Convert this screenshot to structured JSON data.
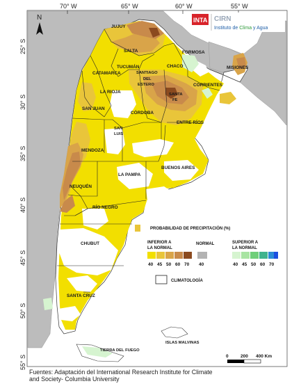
{
  "map": {
    "longitude_labels": [
      "70° W",
      "65° W",
      "60° W",
      "55° W"
    ],
    "latitude_labels": [
      "25° S",
      "30° S",
      "35° S",
      "40° S",
      "45° S",
      "50° S",
      "55° S"
    ],
    "north_label": "N",
    "provinces": {
      "jujuy": "JUJUY",
      "salta": "SALTA",
      "formosa": "FORMOSA",
      "chaco": "CHACO",
      "misiones": "MISIONES",
      "tucuman": "TUCUMÁN",
      "catamarca": "CATAMARCA",
      "santiago": [
        "SANTIAGO",
        "DEL",
        "ESTERO"
      ],
      "corrientes": "CORRIENTES",
      "la_rioja": "LA RIOJA",
      "santa_fe": [
        "SANTA",
        "FE"
      ],
      "san_juan": "SAN JUAN",
      "cordoba": "CÓRDOBA",
      "entre_rios": "ENTRE RÍOS",
      "san_luis": [
        "SAN",
        "LUIS"
      ],
      "mendoza": "MENDOZA",
      "buenos_aires": "BUENOS AIRES",
      "la_pampa": "LA PAMPA",
      "neuquen": "NEUQUÉN",
      "rio_negro": "RÍO NEGRO",
      "chubut": "CHUBUT",
      "santa_cruz": "SANTA CRUZ",
      "tierra_del_fuego": "TIERRA DEL FUEGO",
      "islas_malvinas": "ISLAS MALVINAS"
    },
    "colors": {
      "land_other": "#b9b9b9",
      "ocean": "#ffffff",
      "below_40": "#f2df00",
      "below_45": "#e9c53a",
      "below_50": "#d9a449",
      "below_60": "#c88a4b",
      "below_70": "#8b4a1f",
      "normal": "#b3b3b3",
      "above_40": "#d6f4d0",
      "above_45": "#a8e4a2",
      "above_50": "#6fcf7a",
      "above_60": "#3fb38d",
      "above_70": "#2b8cd6",
      "above_top": "#1b4fe0"
    }
  },
  "logo": {
    "inta": "INTA",
    "cirn": "CIRN",
    "institute_prefix": "Instituto de ",
    "institute_clima": "Clima",
    "institute_suffix": " y Agua"
  },
  "legend": {
    "title": "PROBABILIDAD DE PRECIPITACIÓN (%)",
    "below_label": [
      "INFERIOR A",
      "LA NORMAL"
    ],
    "normal_label": "NORMAL",
    "above_label": [
      "SUPERIOR A",
      "LA NORMAL"
    ],
    "below_values": [
      "40",
      "45",
      "50",
      "60",
      "70"
    ],
    "normal_values": [
      "40"
    ],
    "above_values": [
      "40",
      "45",
      "50",
      "60",
      "70"
    ],
    "climatology_label": "CLIMATOLOGÍA"
  },
  "scale_bar": {
    "labels": [
      "0",
      "200",
      "400 Km"
    ]
  },
  "source": {
    "line1": "Fuentes: Adaptación del International Research Institute for Climate",
    "line2": "and Society- Columbia University"
  }
}
